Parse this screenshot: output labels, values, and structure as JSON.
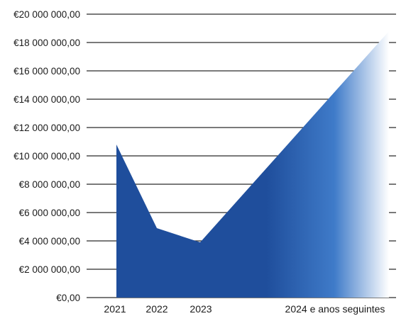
{
  "chart_data": {
    "type": "area",
    "title": "",
    "xlabel": "",
    "ylabel": "",
    "categories": [
      "2021",
      "2022",
      "2023",
      "2024 e anos seguintes"
    ],
    "series": [
      {
        "values": [
          10800000,
          4900000,
          3900000,
          18800000
        ]
      }
    ],
    "y_ticks": [
      "€0,00",
      "€2 000 000,00",
      "€4 000 000,00",
      "€6 000 000,00",
      "€8 000 000,00",
      "€10 000 000,00",
      "€12 000 000,00",
      "€14 000 000,00",
      "€16 000 000,00",
      "€18 000 000,00",
      "€20 000 000,00"
    ],
    "ylim": [
      0,
      20000000
    ],
    "grid": true,
    "legend": "none",
    "colors": {
      "fill_dark": "#1f4e9c",
      "fill_light": "#ffffff",
      "grid": "#2a2a2a"
    }
  }
}
